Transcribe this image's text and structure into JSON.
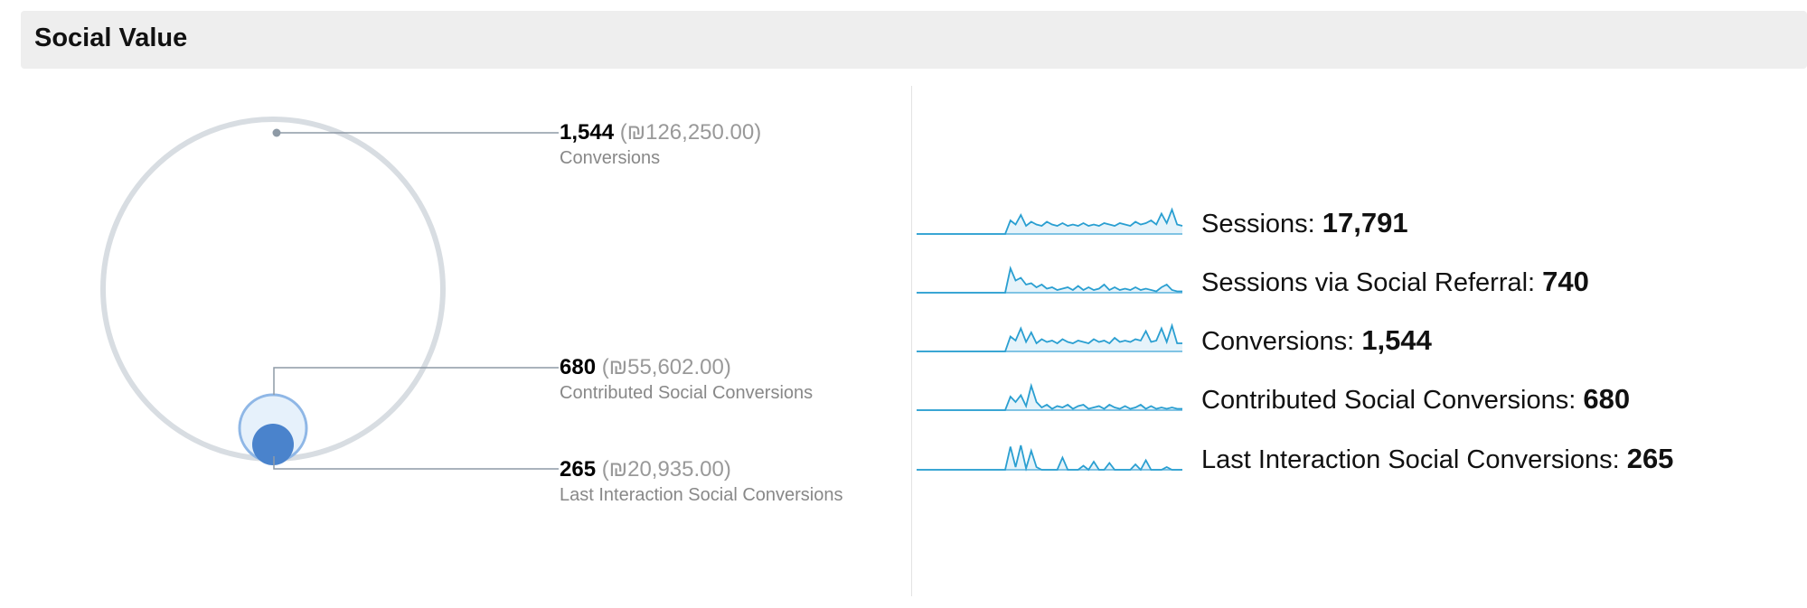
{
  "panel": {
    "title": "Social Value"
  },
  "venn": {
    "callouts": [
      {
        "value": "1,544",
        "money": "(₪126,250.00)",
        "label": "Conversions"
      },
      {
        "value": "680",
        "money": "(₪55,602.00)",
        "label": "Contributed Social Conversions"
      },
      {
        "value": "265",
        "money": "(₪20,935.00)",
        "label": "Last Interaction Social Conversions"
      }
    ]
  },
  "sparklines": [
    {
      "label": "Sessions:",
      "value": "17,791",
      "points": [
        0,
        0,
        0,
        0,
        0,
        0,
        0,
        0,
        0,
        0,
        0,
        0,
        0,
        0,
        0,
        0,
        0,
        0,
        0.5,
        0.35,
        0.7,
        0.3,
        0.45,
        0.35,
        0.3,
        0.45,
        0.35,
        0.3,
        0.4,
        0.3,
        0.35,
        0.3,
        0.4,
        0.3,
        0.35,
        0.3,
        0.4,
        0.35,
        0.3,
        0.4,
        0.35,
        0.3,
        0.45,
        0.35,
        0.4,
        0.5,
        0.35,
        0.75,
        0.4,
        0.9,
        0.35,
        0.3
      ]
    },
    {
      "label": "Sessions via Social Referral:",
      "value": "740",
      "points": [
        0,
        0,
        0,
        0,
        0,
        0,
        0,
        0,
        0,
        0,
        0,
        0,
        0,
        0,
        0,
        0,
        0,
        0,
        0.9,
        0.45,
        0.55,
        0.3,
        0.35,
        0.2,
        0.3,
        0.15,
        0.2,
        0.1,
        0.15,
        0.2,
        0.1,
        0.25,
        0.1,
        0.2,
        0.1,
        0.15,
        0.3,
        0.1,
        0.2,
        0.1,
        0.15,
        0.1,
        0.2,
        0.1,
        0.15,
        0.1,
        0.05,
        0.2,
        0.3,
        0.1,
        0.05,
        0.05
      ]
    },
    {
      "label": "Conversions:",
      "value": "1,544",
      "points": [
        0,
        0,
        0,
        0,
        0,
        0,
        0,
        0,
        0,
        0,
        0,
        0,
        0,
        0,
        0,
        0,
        0,
        0,
        0.55,
        0.4,
        0.85,
        0.35,
        0.7,
        0.3,
        0.45,
        0.35,
        0.4,
        0.3,
        0.45,
        0.35,
        0.3,
        0.4,
        0.35,
        0.3,
        0.45,
        0.35,
        0.4,
        0.3,
        0.5,
        0.35,
        0.4,
        0.35,
        0.45,
        0.4,
        0.75,
        0.35,
        0.4,
        0.85,
        0.35,
        0.95,
        0.3,
        0.3
      ]
    },
    {
      "label": "Contributed Social Conversions:",
      "value": "680",
      "points": [
        0,
        0,
        0,
        0,
        0,
        0,
        0,
        0,
        0,
        0,
        0,
        0,
        0,
        0,
        0,
        0,
        0,
        0,
        0.5,
        0.3,
        0.55,
        0.15,
        0.9,
        0.3,
        0.1,
        0.2,
        0.05,
        0.15,
        0.1,
        0.2,
        0.05,
        0.15,
        0.2,
        0.05,
        0.1,
        0.15,
        0.05,
        0.2,
        0.1,
        0.05,
        0.15,
        0.05,
        0.1,
        0.2,
        0.05,
        0.15,
        0.05,
        0.1,
        0.05,
        0.1,
        0.05,
        0.05
      ]
    },
    {
      "label": "Last Interaction Social Conversions:",
      "value": "265",
      "points": [
        0,
        0,
        0,
        0,
        0,
        0,
        0,
        0,
        0,
        0,
        0,
        0,
        0,
        0,
        0,
        0,
        0,
        0,
        0.85,
        0.1,
        0.9,
        0.05,
        0.7,
        0.1,
        0,
        0,
        0,
        0,
        0.45,
        0,
        0,
        0,
        0.15,
        0,
        0.3,
        0,
        0,
        0.25,
        0,
        0,
        0,
        0,
        0.2,
        0,
        0.35,
        0,
        0,
        0,
        0.1,
        0,
        0,
        0
      ]
    }
  ],
  "colors": {
    "line": "#2a9fd1",
    "fill": "#e6f3fa",
    "baseline": "#5ab2dc",
    "ring": "#d8dde2",
    "leader": "#8e9aa6",
    "contributed": "#4a83cc",
    "lastInteraction": "#4a83cc"
  }
}
